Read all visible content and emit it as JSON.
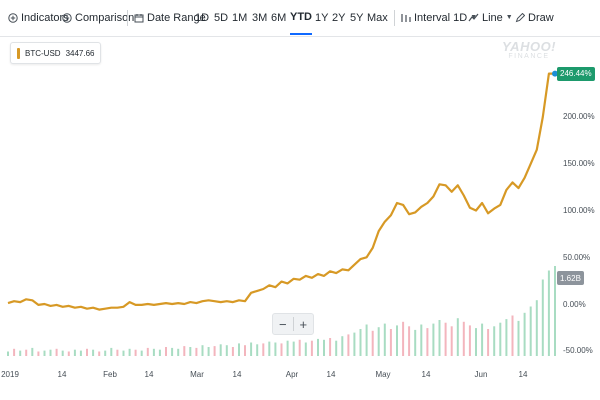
{
  "toolbar": {
    "indicators_label": "Indicators",
    "comparison_label": "Comparison",
    "date_range_label": "Date Range",
    "ranges": [
      "1D",
      "5D",
      "1M",
      "3M",
      "6M",
      "YTD",
      "1Y",
      "2Y",
      "5Y",
      "Max"
    ],
    "active_range": "YTD",
    "interval_label": "Interval 1D",
    "line_label": "Line",
    "draw_label": "Draw"
  },
  "legend": {
    "symbol": "BTC-USD",
    "price": "3447.66"
  },
  "watermark": {
    "line1": "YAHOO!",
    "line2": "FINANCE"
  },
  "colors": {
    "line": "#d79925",
    "up_volume": "#a8dcc2",
    "down_volume": "#f3b5bd",
    "current_badge": "#1d9a6c",
    "volume_badge": "#8d949c",
    "accent": "#0f69ff"
  },
  "zoom": {
    "minus": "−",
    "plus": "+"
  },
  "chart_data": {
    "type": "line",
    "series": [
      {
        "name": "BTC-USD",
        "x": [
          0,
          2,
          4,
          6,
          8,
          10,
          12,
          14,
          16,
          18,
          20,
          22,
          24,
          26,
          28,
          30,
          32,
          34,
          36,
          38,
          40,
          42,
          44,
          46,
          48,
          50,
          52,
          54,
          56,
          58,
          60,
          62,
          64,
          66,
          68,
          70,
          72,
          74,
          76,
          78,
          80,
          82,
          84,
          86,
          88,
          90,
          92,
          94,
          96,
          98,
          100,
          102,
          104,
          106,
          108,
          110,
          112,
          114,
          116,
          118,
          120,
          122,
          124,
          126,
          128,
          130,
          132,
          134,
          136,
          138,
          140,
          142,
          144,
          146,
          148,
          150,
          152,
          154,
          156,
          158,
          160,
          162,
          164,
          166,
          168,
          170,
          172,
          174,
          176,
          178,
          180
        ],
        "values": [
          1,
          3,
          2,
          5,
          4,
          -1,
          0,
          -2,
          -1,
          -3,
          -2,
          -4,
          -3,
          -5,
          -4,
          -6,
          -5,
          -4,
          -4,
          -3,
          2,
          -1,
          -1,
          0,
          -1,
          0,
          1,
          0,
          1,
          0,
          2,
          1,
          3,
          4,
          3,
          2,
          3,
          2,
          4,
          3,
          12,
          14,
          16,
          20,
          18,
          24,
          22,
          27,
          26,
          30,
          28,
          32,
          30,
          35,
          33,
          37,
          36,
          42,
          48,
          50,
          60,
          78,
          88,
          95,
          108,
          106,
          96,
          98,
          104,
          108,
          115,
          128,
          127,
          120,
          127,
          116,
          103,
          100,
          108,
          97,
          102,
          106,
          122,
          130,
          124,
          135,
          150,
          165,
          200,
          246.44,
          246.44
        ]
      }
    ],
    "volume": [
      0.05,
      0.08,
      0.06,
      0.07,
      0.09,
      0.05,
      0.06,
      0.07,
      0.08,
      0.06,
      0.05,
      0.07,
      0.06,
      0.08,
      0.07,
      0.05,
      0.06,
      0.09,
      0.07,
      0.06,
      0.08,
      0.07,
      0.06,
      0.09,
      0.08,
      0.07,
      0.1,
      0.09,
      0.08,
      0.11,
      0.1,
      0.09,
      0.12,
      0.1,
      0.11,
      0.13,
      0.12,
      0.1,
      0.14,
      0.12,
      0.15,
      0.13,
      0.14,
      0.16,
      0.15,
      0.14,
      0.17,
      0.16,
      0.18,
      0.15,
      0.17,
      0.19,
      0.18,
      0.2,
      0.17,
      0.22,
      0.24,
      0.26,
      0.3,
      0.35,
      0.28,
      0.32,
      0.36,
      0.3,
      0.34,
      0.38,
      0.33,
      0.29,
      0.35,
      0.31,
      0.36,
      0.4,
      0.37,
      0.33,
      0.42,
      0.38,
      0.34,
      0.31,
      0.36,
      0.3,
      0.33,
      0.37,
      0.41,
      0.45,
      0.39,
      0.48,
      0.55,
      0.62,
      0.85,
      0.95,
      1.0
    ],
    "volume_up": [
      true,
      false,
      true,
      false,
      true,
      false,
      true,
      true,
      false,
      true,
      false,
      true,
      true,
      false,
      true,
      false,
      true,
      true,
      false,
      true,
      true,
      false,
      true,
      false,
      true,
      true,
      false,
      true,
      true,
      false,
      true,
      false,
      true,
      true,
      false,
      true,
      true,
      false,
      true,
      false,
      true,
      true,
      false,
      true,
      true,
      false,
      true,
      true,
      false,
      true,
      false,
      true,
      true,
      false,
      true,
      true,
      false,
      true,
      true,
      true,
      false,
      true,
      true,
      false,
      true,
      false,
      false,
      true,
      true,
      false,
      true,
      true,
      false,
      false,
      true,
      false,
      false,
      true,
      true,
      false,
      true,
      true,
      true,
      false,
      true,
      true,
      true,
      true,
      true,
      true,
      true
    ],
    "yticks": [
      "200.00%",
      "150.00%",
      "100.00%",
      "50.00%",
      "0.00%",
      "-50.00%"
    ],
    "ytick_values": [
      200,
      150,
      100,
      50,
      0,
      -50
    ],
    "current_label": "246.44%",
    "volume_label": "1.62B",
    "xticks": [
      "2019",
      "14",
      "Feb",
      "14",
      "Mar",
      "14",
      "Apr",
      "14",
      "May",
      "14",
      "Jun",
      "14"
    ],
    "xtick_positions": [
      0,
      14,
      31,
      45,
      59,
      73,
      90,
      104,
      120,
      134,
      151,
      165
    ],
    "ylim": [
      -50,
      260
    ],
    "grid": false,
    "legend_position": "top-left"
  }
}
